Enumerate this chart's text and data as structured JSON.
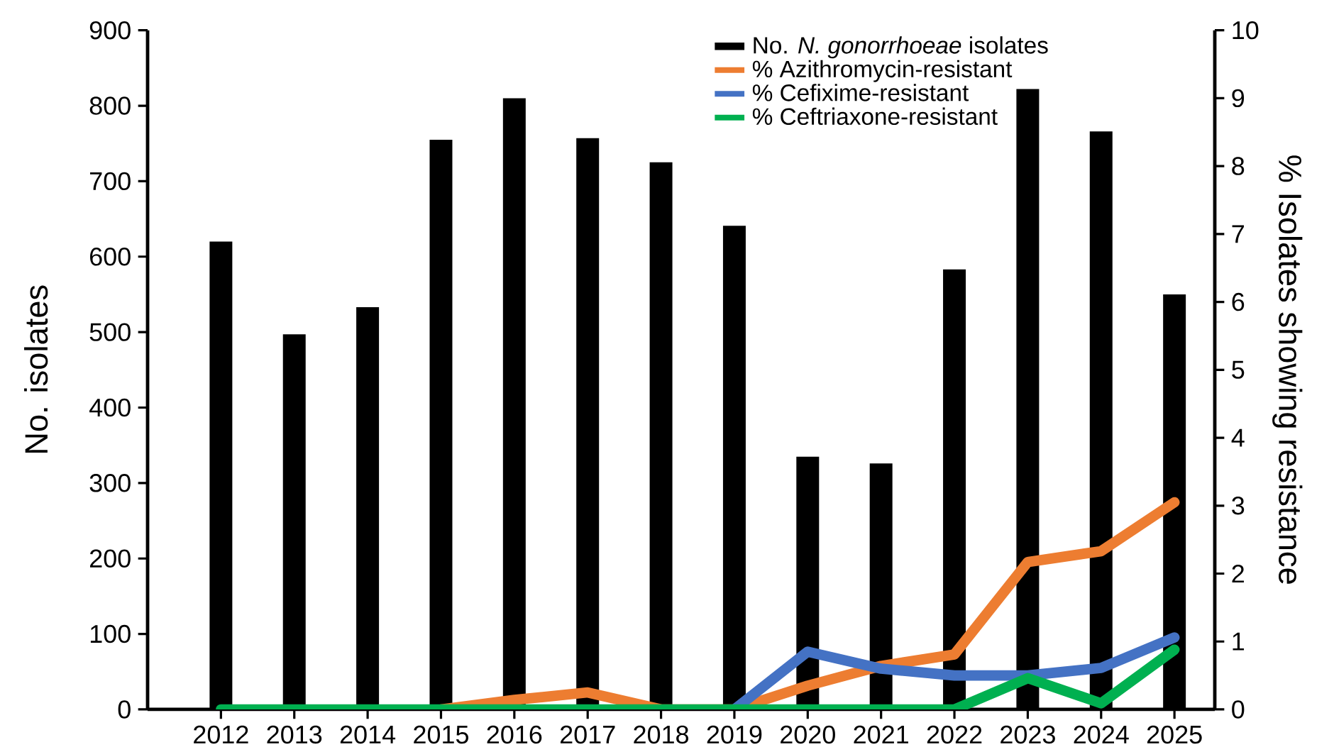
{
  "chart_data": {
    "type": "bar",
    "categories": [
      "2012",
      "2013",
      "2014",
      "2015",
      "2016",
      "2017",
      "2018",
      "2019",
      "2020",
      "2021",
      "2022",
      "2023",
      "2024",
      "2025"
    ],
    "ylabel": "No. isolates",
    "y2label": "% Isolates showing resistance",
    "ylim": [
      0,
      900
    ],
    "yticks": [
      0,
      100,
      200,
      300,
      400,
      500,
      600,
      700,
      800,
      900
    ],
    "y2lim": [
      0,
      10
    ],
    "y2ticks": [
      0,
      1,
      2,
      3,
      4,
      5,
      6,
      7,
      8,
      9,
      10
    ],
    "legend": "top right",
    "marker": "none",
    "line_style": "solid",
    "series": [
      {
        "name": "No. *N. gonorrhoeae* isolates",
        "color": "#000000",
        "values": [
          620,
          497,
          533,
          755,
          810,
          757,
          725,
          641,
          335,
          326,
          583,
          822,
          766,
          550
        ]
      },
      {
        "name": "% Azithromycin-resistant",
        "type": "line",
        "axis": "y2",
        "color": "#ed7d31",
        "values": [
          null,
          null,
          null,
          0,
          0.14,
          0.25,
          0,
          0,
          0.35,
          0.64,
          0.81,
          2.17,
          2.33,
          3.05
        ]
      },
      {
        "name": "% Cefixime-resistant",
        "type": "line",
        "axis": "y2",
        "color": "#4472c4",
        "values": [
          null,
          null,
          null,
          null,
          null,
          null,
          null,
          0,
          0.85,
          0.6,
          0.5,
          0.5,
          0.61,
          1.06
        ]
      },
      {
        "name": "% Ceftriaxone-resistant",
        "type": "line",
        "axis": "y2",
        "color": "#00b050",
        "values": [
          0,
          0,
          0,
          0,
          0,
          0,
          0,
          0,
          0,
          0,
          0,
          0.46,
          0.09,
          0.88
        ]
      }
    ]
  }
}
